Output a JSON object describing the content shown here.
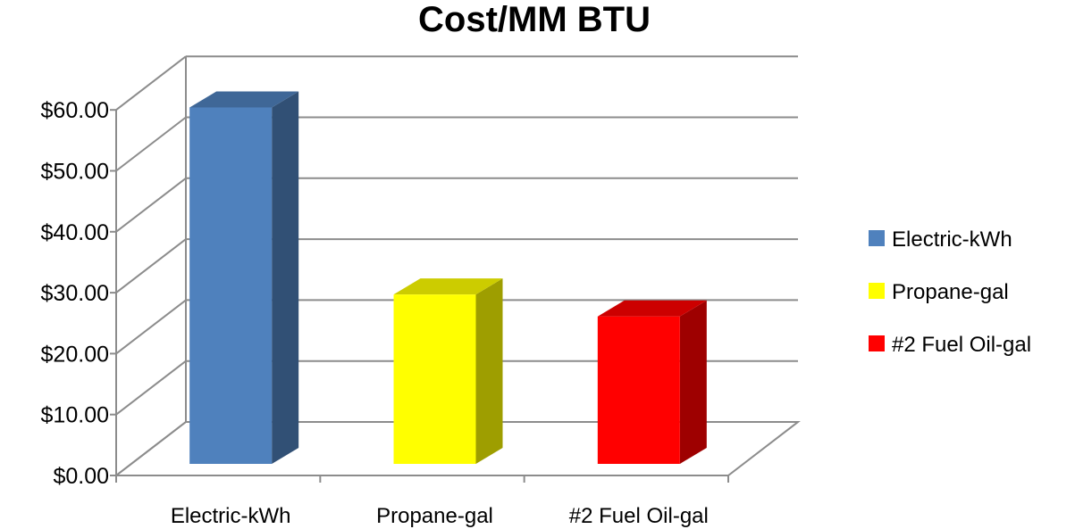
{
  "chart_data": {
    "type": "bar",
    "title": "Cost/MM BTU",
    "xlabel": "",
    "ylabel": "",
    "categories": [
      "Electric-kWh",
      "Propane-gal",
      "#2 Fuel Oil-gal"
    ],
    "values": [
      58.5,
      27.8,
      24.2
    ],
    "colors": [
      "#4F81BD",
      "#FFFF00",
      "#FF0000"
    ],
    "y_ticks": [
      "$0.00",
      "$10.00",
      "$20.00",
      "$30.00",
      "$40.00",
      "$50.00",
      "$60.00"
    ],
    "ylim": [
      0,
      60
    ],
    "grid": true,
    "three_d": true,
    "legend": {
      "position": "right",
      "entries": [
        "Electric-kWh",
        "Propane-gal",
        "#2 Fuel Oil-gal"
      ]
    }
  }
}
